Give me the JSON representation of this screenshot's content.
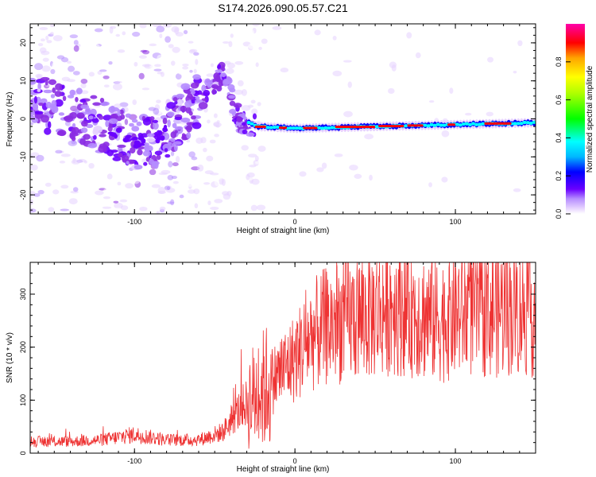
{
  "title": "S174.2026.090.05.57.C21",
  "chart_data": [
    {
      "type": "heatmap",
      "xlabel": "Height of straight line (km)",
      "ylabel": "Frequency (Hz)",
      "xlim": [
        -165,
        150
      ],
      "ylim": [
        -25,
        25
      ],
      "x_ticks": [
        -100,
        0,
        100
      ],
      "y_ticks": [
        -20,
        -10,
        0,
        10,
        20
      ],
      "colorbar": {
        "label": "Normalized spectral amplitude",
        "range": [
          0.0,
          1.0
        ],
        "ticks": [
          "0.0",
          "0.2",
          "0.4",
          "0.6",
          "0.8"
        ],
        "colors": [
          "#ffffff",
          "#e6d2ff",
          "#b58cff",
          "#8a2be2",
          "#6a00ff",
          "#0000ff",
          "#00b7ff",
          "#00ffff",
          "#00ff00",
          "#ffff00",
          "#ffa500",
          "#ff0000",
          "#ff00aa"
        ]
      },
      "ridge": {
        "description_points_km": [
          -165,
          -140,
          -120,
          -100,
          -90,
          -80,
          -60,
          -45,
          -35,
          -25,
          0,
          50,
          100,
          150
        ],
        "frequency_hz": [
          5,
          2,
          -2,
          -6,
          -7,
          -3,
          5,
          12,
          0,
          -2,
          -2.5,
          -2,
          -1.5,
          -1
        ]
      }
    },
    {
      "type": "line",
      "xlabel": "Height of straight line (km)",
      "ylabel": "SNR (10 * v/v)",
      "xlim": [
        -165,
        150
      ],
      "ylim": [
        0,
        360
      ],
      "x_ticks": [
        -100,
        0,
        100
      ],
      "y_ticks": [
        0,
        100,
        200,
        300
      ],
      "color": "#ee3333",
      "envelope": {
        "x": [
          -165,
          -140,
          -120,
          -100,
          -80,
          -60,
          -45,
          -35,
          -25,
          -20,
          -10,
          0,
          10,
          20,
          30,
          40,
          50,
          60,
          70,
          80,
          90,
          100,
          110,
          120,
          130,
          140,
          150
        ],
        "y": [
          22,
          22,
          25,
          35,
          25,
          25,
          40,
          80,
          110,
          120,
          150,
          180,
          220,
          240,
          250,
          255,
          265,
          280,
          275,
          260,
          250,
          265,
          270,
          270,
          272,
          275,
          268
        ]
      }
    }
  ]
}
